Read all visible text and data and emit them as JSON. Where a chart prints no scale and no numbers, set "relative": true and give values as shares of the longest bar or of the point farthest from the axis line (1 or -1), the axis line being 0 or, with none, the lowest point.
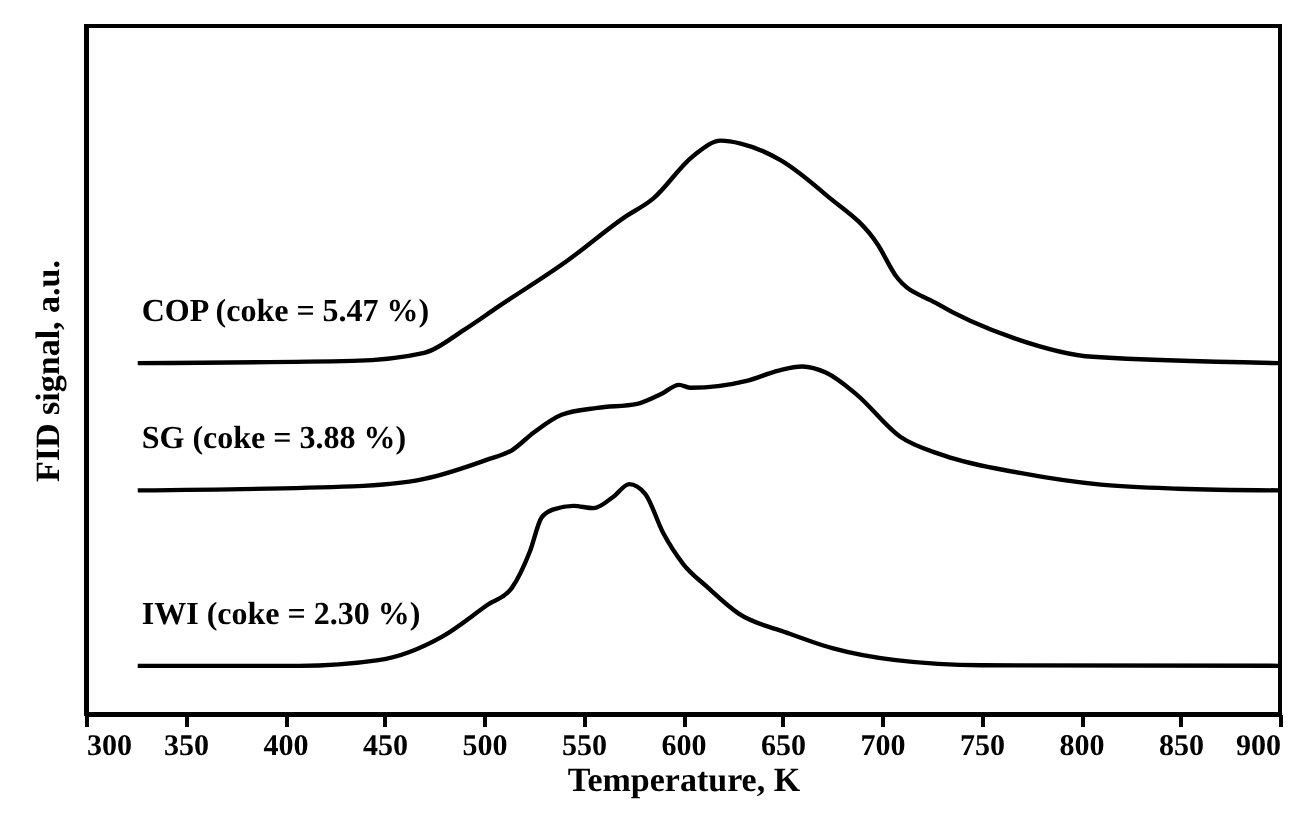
{
  "chart_data": {
    "type": "line",
    "relative": true,
    "xlabel": "Temperature, K",
    "ylabel": "FID signal, a.u.",
    "xlim": [
      300,
      900
    ],
    "xticks": [
      300,
      350,
      400,
      450,
      500,
      550,
      600,
      650,
      700,
      750,
      800,
      850,
      900
    ],
    "grid": false,
    "marker": "none",
    "line_style": "solid",
    "series": [
      {
        "name": "COP (coke = 5.47 %)",
        "color": "#000000",
        "x": [
          326,
          434,
          470,
          490,
          507,
          542,
          570,
          585,
          605,
          619,
          629,
          649,
          672,
          698,
          707,
          727,
          766,
          806,
          900
        ],
        "values": [
          0.612,
          0.616,
          0.63,
          0.67,
          0.71,
          0.791,
          0.865,
          0.899,
          0.973,
          1,
          0.995,
          0.966,
          0.905,
          0.818,
          0.764,
          0.717,
          0.656,
          0.623,
          0.612
        ]
      },
      {
        "name": "SG (coke = 3.88 %)",
        "color": "#000000",
        "x": [
          326,
          434,
          470,
          502,
          514,
          525,
          539,
          557,
          577,
          589,
          598,
          604,
          632,
          648,
          660,
          672,
          687,
          709,
          731,
          770,
          810,
          849,
          900
        ],
        "values": [
          0.39,
          0.397,
          0.41,
          0.444,
          0.46,
          0.491,
          0.522,
          0.534,
          0.541,
          0.558,
          0.574,
          0.569,
          0.581,
          0.599,
          0.606,
          0.595,
          0.558,
          0.484,
          0.451,
          0.42,
          0.4,
          0.393,
          0.39
        ]
      },
      {
        "name": "IWI (coke = 2.30 %)",
        "color": "#000000",
        "x": [
          326,
          407,
          447,
          479,
          502,
          514,
          523,
          529,
          535,
          545,
          555,
          565,
          573,
          581,
          590,
          600,
          612,
          628,
          652,
          675,
          707,
          750,
          900
        ],
        "values": [
          0.084,
          0.084,
          0.094,
          0.135,
          0.191,
          0.22,
          0.283,
          0.343,
          0.357,
          0.363,
          0.359,
          0.379,
          0.401,
          0.384,
          0.316,
          0.262,
          0.222,
          0.175,
          0.142,
          0.115,
          0.094,
          0.085,
          0.084
        ]
      }
    ]
  }
}
